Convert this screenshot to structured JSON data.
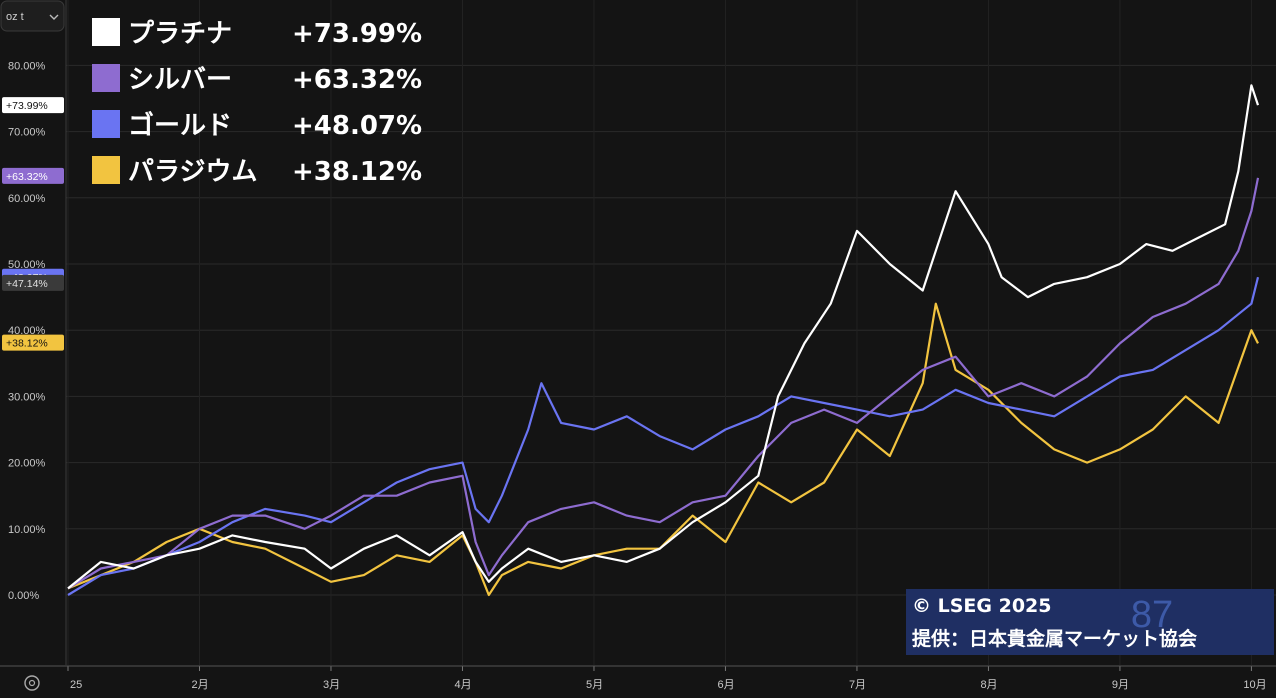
{
  "unit_selector": {
    "label": "oz t"
  },
  "settings_icon": "gear-icon",
  "chart_data": {
    "type": "line",
    "ylim": [
      -10,
      90
    ],
    "y_ticks": [
      0,
      10,
      20,
      30,
      40,
      50,
      60,
      70,
      80
    ],
    "y_tick_labels": [
      "0.00%",
      "10.00%",
      "20.00%",
      "30.00%",
      "40.00%",
      "50.00%",
      "60.00%",
      "70.00%",
      "80.00%"
    ],
    "x_tick_labels": [
      "25",
      "2月",
      "3月",
      "4月",
      "5月",
      "6月",
      "7月",
      "8月",
      "9月",
      "10月"
    ],
    "x_tick_months": [
      0,
      1,
      2,
      3,
      4,
      5,
      6,
      7,
      8,
      9
    ],
    "xlim": [
      0,
      9.05
    ],
    "grid": true,
    "legend_position": "top-left",
    "series": [
      {
        "name": "プラチナ",
        "change_label": "+73.99%",
        "color": "#ffffff",
        "x": [
          0.0,
          0.25,
          0.5,
          0.75,
          1.0,
          1.25,
          1.5,
          1.8,
          2.0,
          2.25,
          2.5,
          2.75,
          3.0,
          3.1,
          3.2,
          3.3,
          3.5,
          3.75,
          4.0,
          4.25,
          4.5,
          4.75,
          5.0,
          5.25,
          5.4,
          5.6,
          5.8,
          6.0,
          6.25,
          6.5,
          6.6,
          6.75,
          7.0,
          7.1,
          7.3,
          7.5,
          7.75,
          8.0,
          8.2,
          8.4,
          8.6,
          8.8,
          8.9,
          9.0,
          9.05
        ],
        "y": [
          1.0,
          5.0,
          4.0,
          6.0,
          7.0,
          9.0,
          8.0,
          7.0,
          4.0,
          7.0,
          9.0,
          6.0,
          9.5,
          5.0,
          2.0,
          4.0,
          7.0,
          5.0,
          6.0,
          5.0,
          7.0,
          11.0,
          14.0,
          18.0,
          30.0,
          38.0,
          44.0,
          55.0,
          50.0,
          46.0,
          52.0,
          61.0,
          53.0,
          48.0,
          45.0,
          47.0,
          48.0,
          50.0,
          53.0,
          52.0,
          54.0,
          56.0,
          64.0,
          77.0,
          74.0
        ]
      },
      {
        "name": "シルバー",
        "change_label": "+63.32%",
        "color": "#8e6cd0",
        "x": [
          0.0,
          0.25,
          0.5,
          0.75,
          1.0,
          1.25,
          1.5,
          1.8,
          2.0,
          2.25,
          2.5,
          2.75,
          3.0,
          3.1,
          3.2,
          3.3,
          3.5,
          3.75,
          4.0,
          4.25,
          4.5,
          4.75,
          5.0,
          5.25,
          5.5,
          5.75,
          6.0,
          6.25,
          6.5,
          6.75,
          7.0,
          7.25,
          7.5,
          7.75,
          8.0,
          8.25,
          8.5,
          8.75,
          8.9,
          9.0,
          9.05
        ],
        "y": [
          1.0,
          4.0,
          5.0,
          6.0,
          10.0,
          12.0,
          12.0,
          10.0,
          12.0,
          15.0,
          15.0,
          17.0,
          18.0,
          8.0,
          3.0,
          6.0,
          11.0,
          13.0,
          14.0,
          12.0,
          11.0,
          14.0,
          15.0,
          21.0,
          26.0,
          28.0,
          26.0,
          30.0,
          34.0,
          36.0,
          30.0,
          32.0,
          30.0,
          33.0,
          38.0,
          42.0,
          44.0,
          47.0,
          52.0,
          58.0,
          63.0
        ]
      },
      {
        "name": "ゴールド",
        "change_label": "+48.07%",
        "color": "#6a74f2",
        "x": [
          0.0,
          0.25,
          0.5,
          0.75,
          1.0,
          1.25,
          1.5,
          1.8,
          2.0,
          2.25,
          2.5,
          2.75,
          3.0,
          3.1,
          3.2,
          3.3,
          3.5,
          3.6,
          3.75,
          4.0,
          4.25,
          4.5,
          4.75,
          5.0,
          5.25,
          5.5,
          5.75,
          6.0,
          6.25,
          6.5,
          6.75,
          7.0,
          7.25,
          7.5,
          7.75,
          8.0,
          8.25,
          8.5,
          8.75,
          9.0,
          9.05
        ],
        "y": [
          0.0,
          3.0,
          4.0,
          6.0,
          8.0,
          11.0,
          13.0,
          12.0,
          11.0,
          14.0,
          17.0,
          19.0,
          20.0,
          13.0,
          11.0,
          15.0,
          25.0,
          32.0,
          26.0,
          25.0,
          27.0,
          24.0,
          22.0,
          25.0,
          27.0,
          30.0,
          29.0,
          28.0,
          27.0,
          28.0,
          31.0,
          29.0,
          28.0,
          27.0,
          30.0,
          33.0,
          34.0,
          37.0,
          40.0,
          44.0,
          48.0
        ]
      },
      {
        "name": "パラジウム",
        "change_label": "+38.12%",
        "color": "#f2c440",
        "x": [
          0.0,
          0.25,
          0.5,
          0.75,
          1.0,
          1.25,
          1.5,
          1.8,
          2.0,
          2.25,
          2.5,
          2.75,
          3.0,
          3.1,
          3.2,
          3.3,
          3.5,
          3.75,
          4.0,
          4.25,
          4.5,
          4.75,
          5.0,
          5.25,
          5.5,
          5.75,
          6.0,
          6.25,
          6.5,
          6.6,
          6.75,
          7.0,
          7.25,
          7.5,
          7.75,
          8.0,
          8.25,
          8.5,
          8.75,
          9.0,
          9.05
        ],
        "y": [
          1.0,
          3.0,
          5.0,
          8.0,
          10.0,
          8.0,
          7.0,
          4.0,
          2.0,
          3.0,
          6.0,
          5.0,
          9.0,
          5.0,
          0.0,
          3.0,
          5.0,
          4.0,
          6.0,
          7.0,
          7.0,
          12.0,
          8.0,
          17.0,
          14.0,
          17.0,
          25.0,
          21.0,
          32.0,
          44.0,
          34.0,
          31.0,
          26.0,
          22.0,
          20.0,
          22.0,
          25.0,
          30.0,
          26.0,
          40.0,
          38.0
        ]
      }
    ],
    "axis_badges": [
      {
        "label": "+73.99%",
        "value": 73.99,
        "bg": "#ffffff",
        "fg": "#111111"
      },
      {
        "label": "+63.32%",
        "value": 63.32,
        "bg": "#8e6cd0",
        "fg": "#ffffff"
      },
      {
        "label": "+48.07%",
        "value": 48.07,
        "bg": "#6a74f2",
        "fg": "#ffffff"
      },
      {
        "label": "+47.14%",
        "value": 47.14,
        "bg": "#3a3a3a",
        "fg": "#e0e0e0"
      },
      {
        "label": "+38.12%",
        "value": 38.12,
        "bg": "#f2c440",
        "fg": "#111111"
      }
    ]
  },
  "credit": {
    "line1": "© LSEG 2025",
    "line2": "提供：日本貴金属マーケット協会",
    "watermark": "87",
    "bg": "#1f2f63"
  }
}
